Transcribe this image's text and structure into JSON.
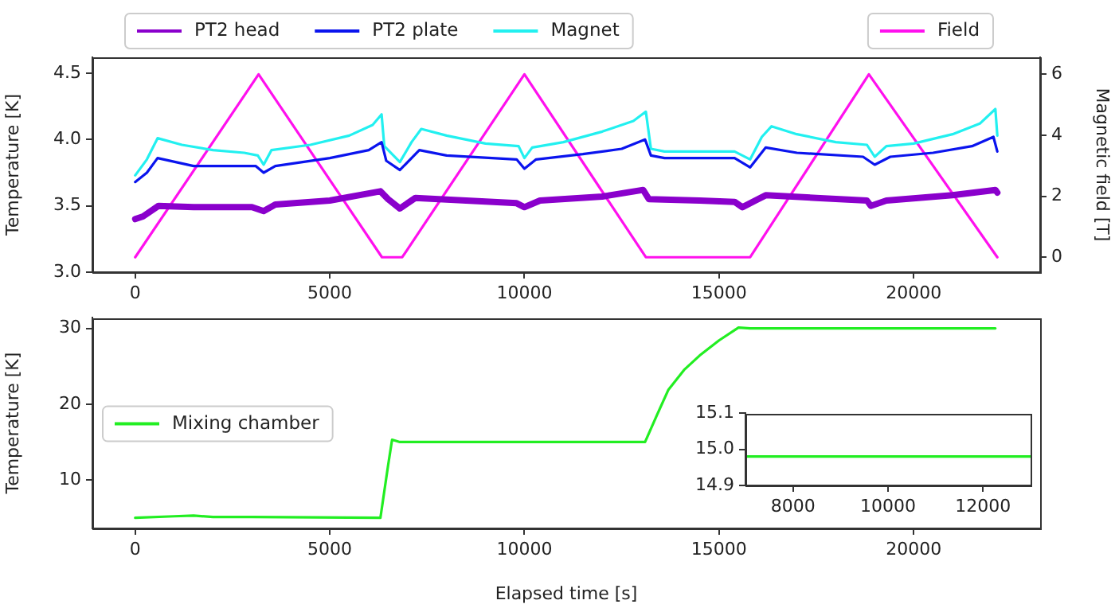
{
  "chart_data": [
    {
      "type": "line",
      "ylabel": "Temperature [K]",
      "y2label": "Magnetic field [T]",
      "xlim": [
        -1100,
        23250
      ],
      "xticks": [
        0,
        5000,
        10000,
        15000,
        20000
      ],
      "ylim": [
        3.0,
        4.62
      ],
      "yticks": [
        {
          "value": 3,
          "label": "3.0"
        },
        3.5,
        {
          "value": 4,
          "label": "4.0"
        },
        4.5
      ],
      "y2lim": [
        -0.49,
        6.56
      ],
      "y2ticks": [
        0,
        2,
        4,
        6
      ],
      "legend": "top",
      "series": [
        {
          "name": "PT2 head",
          "color": "#8a00cc",
          "x": [
            0,
            200,
            600,
            1500,
            3000,
            3300,
            3600,
            5000,
            6300,
            6500,
            6800,
            7200,
            8500,
            9800,
            10000,
            10400,
            12000,
            13050,
            13200,
            14500,
            15400,
            15600,
            16200,
            17500,
            18800,
            18900,
            19300,
            21000,
            22100,
            22150
          ],
          "values": [
            3.4,
            3.42,
            3.5,
            3.49,
            3.49,
            3.46,
            3.51,
            3.54,
            3.61,
            3.55,
            3.48,
            3.56,
            3.54,
            3.52,
            3.49,
            3.54,
            3.57,
            3.62,
            3.55,
            3.54,
            3.53,
            3.49,
            3.58,
            3.56,
            3.54,
            3.5,
            3.54,
            3.58,
            3.62,
            3.6
          ]
        },
        {
          "name": "PT2 plate",
          "color": "#0a14ee",
          "x": [
            0,
            300,
            575,
            1500,
            3100,
            3300,
            3600,
            5000,
            6000,
            6330,
            6450,
            6800,
            7300,
            8000,
            9800,
            10000,
            10300,
            11500,
            12500,
            13100,
            13250,
            13600,
            15400,
            15800,
            16200,
            17000,
            18700,
            19000,
            19400,
            20500,
            21500,
            22050,
            22150
          ],
          "values": [
            3.68,
            3.75,
            3.86,
            3.8,
            3.8,
            3.75,
            3.8,
            3.86,
            3.92,
            3.98,
            3.84,
            3.77,
            3.92,
            3.88,
            3.85,
            3.78,
            3.85,
            3.89,
            3.93,
            4.0,
            3.88,
            3.86,
            3.86,
            3.79,
            3.94,
            3.9,
            3.87,
            3.81,
            3.87,
            3.9,
            3.95,
            4.02,
            3.91
          ]
        },
        {
          "name": "Magnet",
          "color": "#22f0f0",
          "x": [
            0,
            300,
            575,
            1200,
            2000,
            2800,
            3150,
            3300,
            3500,
            4500,
            5500,
            6100,
            6330,
            6400,
            6800,
            7100,
            7350,
            8000,
            9000,
            9850,
            10000,
            10200,
            11000,
            12000,
            12800,
            13120,
            13250,
            13600,
            15400,
            15800,
            16100,
            16350,
            17000,
            18000,
            18800,
            19000,
            19300,
            20000,
            21000,
            21700,
            22100,
            22150
          ],
          "values": [
            3.73,
            3.85,
            4.01,
            3.96,
            3.92,
            3.9,
            3.88,
            3.81,
            3.92,
            3.96,
            4.03,
            4.11,
            4.19,
            3.95,
            3.83,
            3.98,
            4.08,
            4.03,
            3.97,
            3.95,
            3.86,
            3.94,
            3.98,
            4.06,
            4.14,
            4.21,
            3.93,
            3.91,
            3.91,
            3.85,
            4.02,
            4.1,
            4.04,
            3.98,
            3.96,
            3.87,
            3.95,
            3.97,
            4.04,
            4.12,
            4.23,
            4.03
          ]
        },
        {
          "name": "Field",
          "color": "#ff10ee",
          "axis": "y2",
          "x": [
            0,
            3170,
            6340,
            6860,
            10000,
            13120,
            15800,
            18850,
            22150
          ],
          "values": [
            0,
            6,
            0,
            0,
            6,
            0,
            0,
            6,
            0
          ]
        }
      ]
    },
    {
      "type": "line",
      "xlabel": "Elapsed time [s]",
      "ylabel": "Temperature [K]",
      "xlim": [
        -1100,
        23250
      ],
      "xticks": [
        0,
        5000,
        10000,
        15000,
        20000
      ],
      "ylim": [
        3.6,
        31.4
      ],
      "yticks": [
        10,
        20,
        30
      ],
      "legend": "center left",
      "series": [
        {
          "name": "Mixing chamber",
          "color": "#22ee22",
          "x": [
            0,
            1000,
            1500,
            2000,
            3000,
            6300,
            6500,
            6600,
            6800,
            13100,
            13400,
            13700,
            14100,
            14500,
            15000,
            15500,
            15800,
            22100
          ],
          "values": [
            5,
            5.2,
            5.3,
            5.1,
            5.1,
            5,
            12,
            15.3,
            15,
            15,
            18.5,
            21.9,
            24.5,
            26.4,
            28.4,
            30.1,
            30,
            30
          ]
        }
      ]
    },
    {
      "type": "line",
      "xlim": [
        7000,
        13000
      ],
      "xticks": [
        8000,
        10000,
        12000
      ],
      "ylim": [
        14.9,
        15.1
      ],
      "yticks": [
        14.9,
        {
          "value": 15,
          "label": "15.0"
        },
        15.1
      ],
      "series": [
        {
          "color": "#22ee22",
          "x": [
            7000,
            8000,
            9000,
            10000,
            11000,
            12000,
            13000
          ],
          "values": [
            14.98,
            14.98,
            14.98,
            14.98,
            14.98,
            14.98,
            14.98
          ]
        }
      ]
    }
  ]
}
